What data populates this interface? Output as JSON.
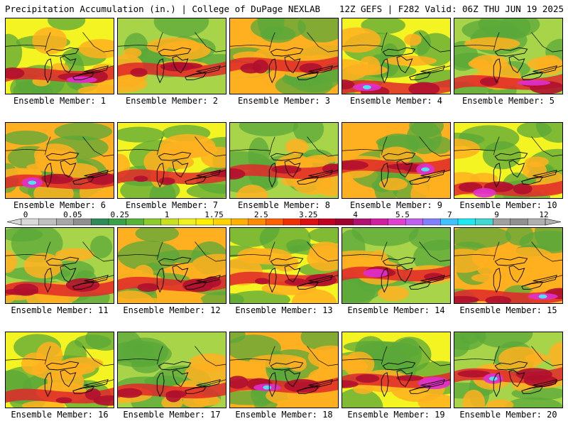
{
  "header": {
    "left": "Precipitation Accumulation (in.) | College of DuPage NEXLAB",
    "right": "12Z GEFS | F282 Valid: 06Z THU JUN 19 2025"
  },
  "members": [
    {
      "label": "Ensemble Member: 1"
    },
    {
      "label": "Ensemble Member: 2"
    },
    {
      "label": "Ensemble Member: 3"
    },
    {
      "label": "Ensemble Member: 4"
    },
    {
      "label": "Ensemble Member: 5"
    },
    {
      "label": "Ensemble Member: 6"
    },
    {
      "label": "Ensemble Member: 7"
    },
    {
      "label": "Ensemble Member: 8"
    },
    {
      "label": "Ensemble Member: 9"
    },
    {
      "label": "Ensemble Member: 10"
    },
    {
      "label": "Ensemble Member: 11"
    },
    {
      "label": "Ensemble Member: 12"
    },
    {
      "label": "Ensemble Member: 13"
    },
    {
      "label": "Ensemble Member: 14"
    },
    {
      "label": "Ensemble Member: 15"
    },
    {
      "label": "Ensemble Member: 16"
    },
    {
      "label": "Ensemble Member: 17"
    },
    {
      "label": "Ensemble Member: 18"
    },
    {
      "label": "Ensemble Member: 19"
    },
    {
      "label": "Ensemble Member: 20"
    }
  ],
  "colorbar": {
    "tick_labels": [
      "0",
      "0.05",
      "0.25",
      "1",
      "1.75",
      "2.5",
      "3.25",
      "4",
      "5.5",
      "7",
      "9",
      "12"
    ],
    "colors": [
      "#d9d9d9",
      "#c0c0c0",
      "#a8a8a8",
      "#8f8f8f",
      "#2e8b57",
      "#3aa04a",
      "#58b33a",
      "#8ccc2c",
      "#c8e020",
      "#f0f020",
      "#fff000",
      "#ffd400",
      "#ffb000",
      "#ff8c00",
      "#ff6000",
      "#f03000",
      "#dc1010",
      "#c00020",
      "#a00030",
      "#b01070",
      "#d020a0",
      "#e040d0",
      "#c060f0",
      "#8080ff",
      "#40c0ff",
      "#20e8f0",
      "#40d8d0",
      "#a0a0a0",
      "#909090",
      "#b0b0b0"
    ]
  },
  "palette": {
    "green": "#5aa83a",
    "light_green": "#a8d44a",
    "yellow": "#f4f422",
    "orange": "#ffb020",
    "red": "#e0282a",
    "dark_red": "#b0102e",
    "magenta": "#e030d0",
    "cyan": "#50e0f0",
    "coastline": "#000000"
  }
}
